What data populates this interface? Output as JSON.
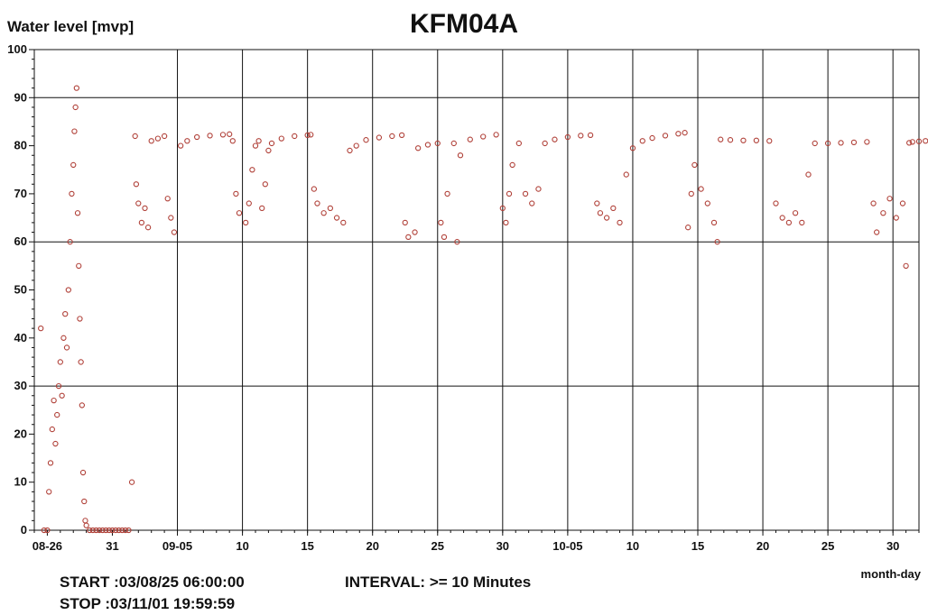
{
  "chart_data": {
    "type": "scatter",
    "title": "KFM04A",
    "ylabel": "Water level [mvp]",
    "xlabel": "month-day",
    "ylim": [
      0,
      100
    ],
    "xlim": [
      "2003-08-25",
      "2003-11-01"
    ],
    "grid": true,
    "marker_color": "#b04038",
    "y_ticks": [
      "0",
      "10",
      "20",
      "30",
      "40",
      "50",
      "60",
      "70",
      "80",
      "90",
      "100"
    ],
    "x_ticks": [
      {
        "date": "2003-08-26",
        "label": "08-26"
      },
      {
        "date": "2003-08-31",
        "label": "31"
      },
      {
        "date": "2003-09-05",
        "label": "09-05"
      },
      {
        "date": "2003-09-10",
        "label": "10"
      },
      {
        "date": "2003-09-15",
        "label": "15"
      },
      {
        "date": "2003-09-20",
        "label": "20"
      },
      {
        "date": "2003-09-25",
        "label": "25"
      },
      {
        "date": "2003-09-30",
        "label": "30"
      },
      {
        "date": "2003-10-05",
        "label": "10-05"
      },
      {
        "date": "2003-10-10",
        "label": "10"
      },
      {
        "date": "2003-10-15",
        "label": "15"
      },
      {
        "date": "2003-10-20",
        "label": "20"
      },
      {
        "date": "2003-10-25",
        "label": "25"
      },
      {
        "date": "2003-10-30",
        "label": "30"
      }
    ],
    "points": [
      [
        "2003-08-25 12:00",
        42
      ],
      [
        "2003-08-25 18:00",
        0
      ],
      [
        "2003-08-26 00:00",
        0
      ],
      [
        "2003-08-26 03:00",
        8
      ],
      [
        "2003-08-26 06:00",
        14
      ],
      [
        "2003-08-26 09:00",
        21
      ],
      [
        "2003-08-26 12:00",
        27
      ],
      [
        "2003-08-26 15:00",
        18
      ],
      [
        "2003-08-26 18:00",
        24
      ],
      [
        "2003-08-26 21:00",
        30
      ],
      [
        "2003-08-27 00:00",
        35
      ],
      [
        "2003-08-27 03:00",
        28
      ],
      [
        "2003-08-27 06:00",
        40
      ],
      [
        "2003-08-27 09:00",
        45
      ],
      [
        "2003-08-27 12:00",
        38
      ],
      [
        "2003-08-27 15:00",
        50
      ],
      [
        "2003-08-27 18:00",
        60
      ],
      [
        "2003-08-27 21:00",
        70
      ],
      [
        "2003-08-28 00:00",
        76
      ],
      [
        "2003-08-28 02:00",
        83
      ],
      [
        "2003-08-28 04:00",
        88
      ],
      [
        "2003-08-28 06:00",
        92
      ],
      [
        "2003-08-28 08:00",
        66
      ],
      [
        "2003-08-28 10:00",
        55
      ],
      [
        "2003-08-28 12:00",
        44
      ],
      [
        "2003-08-28 14:00",
        35
      ],
      [
        "2003-08-28 16:00",
        26
      ],
      [
        "2003-08-28 18:00",
        12
      ],
      [
        "2003-08-28 20:00",
        6
      ],
      [
        "2003-08-28 22:00",
        2
      ],
      [
        "2003-08-29 00:00",
        1
      ],
      [
        "2003-08-29 06:00",
        0
      ],
      [
        "2003-08-29 12:00",
        0
      ],
      [
        "2003-08-29 18:00",
        0
      ],
      [
        "2003-08-30 00:00",
        0
      ],
      [
        "2003-08-30 06:00",
        0
      ],
      [
        "2003-08-30 12:00",
        0
      ],
      [
        "2003-08-30 18:00",
        0
      ],
      [
        "2003-08-31 00:00",
        0
      ],
      [
        "2003-08-31 06:00",
        0
      ],
      [
        "2003-08-31 12:00",
        0
      ],
      [
        "2003-08-31 18:00",
        0
      ],
      [
        "2003-09-01 00:00",
        0
      ],
      [
        "2003-09-01 06:00",
        0
      ],
      [
        "2003-09-01 12:00",
        10
      ],
      [
        "2003-09-01 18:00",
        82
      ],
      [
        "2003-09-01 20:00",
        72
      ],
      [
        "2003-09-02 00:00",
        68
      ],
      [
        "2003-09-02 06:00",
        64
      ],
      [
        "2003-09-02 12:00",
        67
      ],
      [
        "2003-09-02 18:00",
        63
      ],
      [
        "2003-09-03 00:00",
        81
      ],
      [
        "2003-09-03 12:00",
        81.5
      ],
      [
        "2003-09-04 00:00",
        82
      ],
      [
        "2003-09-04 06:00",
        69
      ],
      [
        "2003-09-04 12:00",
        65
      ],
      [
        "2003-09-04 18:00",
        62
      ],
      [
        "2003-09-05 06:00",
        80
      ],
      [
        "2003-09-05 18:00",
        81
      ],
      [
        "2003-09-06 12:00",
        81.8
      ],
      [
        "2003-09-07 12:00",
        82.1
      ],
      [
        "2003-09-08 12:00",
        82.3
      ],
      [
        "2003-09-09 00:00",
        82.4
      ],
      [
        "2003-09-09 06:00",
        81
      ],
      [
        "2003-09-09 12:00",
        70
      ],
      [
        "2003-09-09 18:00",
        66
      ],
      [
        "2003-09-10 06:00",
        64
      ],
      [
        "2003-09-10 12:00",
        68
      ],
      [
        "2003-09-10 18:00",
        75
      ],
      [
        "2003-09-11 00:00",
        80
      ],
      [
        "2003-09-11 06:00",
        81
      ],
      [
        "2003-09-11 12:00",
        67
      ],
      [
        "2003-09-11 18:00",
        72
      ],
      [
        "2003-09-12 00:00",
        79
      ],
      [
        "2003-09-12 06:00",
        80.5
      ],
      [
        "2003-09-13 00:00",
        81.5
      ],
      [
        "2003-09-14 00:00",
        82
      ],
      [
        "2003-09-15 00:00",
        82.2
      ],
      [
        "2003-09-15 06:00",
        82.3
      ],
      [
        "2003-09-15 12:00",
        71
      ],
      [
        "2003-09-15 18:00",
        68
      ],
      [
        "2003-09-16 06:00",
        66
      ],
      [
        "2003-09-16 18:00",
        67
      ],
      [
        "2003-09-17 06:00",
        65
      ],
      [
        "2003-09-17 18:00",
        64
      ],
      [
        "2003-09-18 06:00",
        79
      ],
      [
        "2003-09-18 18:00",
        80
      ],
      [
        "2003-09-19 12:00",
        81.2
      ],
      [
        "2003-09-20 12:00",
        81.7
      ],
      [
        "2003-09-21 12:00",
        82
      ],
      [
        "2003-09-22 06:00",
        82.2
      ],
      [
        "2003-09-22 12:00",
        64
      ],
      [
        "2003-09-22 18:00",
        61
      ],
      [
        "2003-09-23 06:00",
        62
      ],
      [
        "2003-09-23 12:00",
        79.5
      ],
      [
        "2003-09-24 06:00",
        80.2
      ],
      [
        "2003-09-25 00:00",
        80.5
      ],
      [
        "2003-09-25 06:00",
        64
      ],
      [
        "2003-09-25 12:00",
        61
      ],
      [
        "2003-09-25 18:00",
        70
      ],
      [
        "2003-09-26 06:00",
        80.5
      ],
      [
        "2003-09-26 12:00",
        60
      ],
      [
        "2003-09-26 18:00",
        78
      ],
      [
        "2003-09-27 12:00",
        81.3
      ],
      [
        "2003-09-28 12:00",
        81.9
      ],
      [
        "2003-09-29 12:00",
        82.3
      ],
      [
        "2003-09-30 00:00",
        67
      ],
      [
        "2003-09-30 06:00",
        64
      ],
      [
        "2003-09-30 12:00",
        70
      ],
      [
        "2003-09-30 18:00",
        76
      ],
      [
        "2003-10-01 06:00",
        80.5
      ],
      [
        "2003-10-01 18:00",
        70
      ],
      [
        "2003-10-02 06:00",
        68
      ],
      [
        "2003-10-02 18:00",
        71
      ],
      [
        "2003-10-03 06:00",
        80.5
      ],
      [
        "2003-10-04 00:00",
        81.3
      ],
      [
        "2003-10-05 00:00",
        81.8
      ],
      [
        "2003-10-06 00:00",
        82.1
      ],
      [
        "2003-10-06 18:00",
        82.2
      ],
      [
        "2003-10-07 06:00",
        68
      ],
      [
        "2003-10-07 12:00",
        66
      ],
      [
        "2003-10-08 00:00",
        65
      ],
      [
        "2003-10-08 12:00",
        67
      ],
      [
        "2003-10-09 00:00",
        64
      ],
      [
        "2003-10-09 12:00",
        74
      ],
      [
        "2003-10-10 00:00",
        79.5
      ],
      [
        "2003-10-10 18:00",
        81
      ],
      [
        "2003-10-11 12:00",
        81.6
      ],
      [
        "2003-10-12 12:00",
        82.1
      ],
      [
        "2003-10-13 12:00",
        82.5
      ],
      [
        "2003-10-14 00:00",
        82.7
      ],
      [
        "2003-10-14 06:00",
        63
      ],
      [
        "2003-10-14 12:00",
        70
      ],
      [
        "2003-10-14 18:00",
        76
      ],
      [
        "2003-10-15 06:00",
        71
      ],
      [
        "2003-10-15 18:00",
        68
      ],
      [
        "2003-10-16 06:00",
        64
      ],
      [
        "2003-10-16 12:00",
        60
      ],
      [
        "2003-10-16 18:00",
        81.3
      ],
      [
        "2003-10-17 12:00",
        81.2
      ],
      [
        "2003-10-18 12:00",
        81.1
      ],
      [
        "2003-10-19 12:00",
        81.1
      ],
      [
        "2003-10-20 12:00",
        81
      ],
      [
        "2003-10-21 00:00",
        68
      ],
      [
        "2003-10-21 12:00",
        65
      ],
      [
        "2003-10-22 00:00",
        64
      ],
      [
        "2003-10-22 12:00",
        66
      ],
      [
        "2003-10-23 00:00",
        64
      ],
      [
        "2003-10-23 12:00",
        74
      ],
      [
        "2003-10-24 00:00",
        80.5
      ],
      [
        "2003-10-25 00:00",
        80.5
      ],
      [
        "2003-10-26 00:00",
        80.6
      ],
      [
        "2003-10-27 00:00",
        80.7
      ],
      [
        "2003-10-28 00:00",
        80.8
      ],
      [
        "2003-10-28 12:00",
        68
      ],
      [
        "2003-10-28 18:00",
        62
      ],
      [
        "2003-10-29 06:00",
        66
      ],
      [
        "2003-10-29 18:00",
        69
      ],
      [
        "2003-10-30 06:00",
        65
      ],
      [
        "2003-10-30 18:00",
        68
      ],
      [
        "2003-10-31 00:00",
        55
      ],
      [
        "2003-10-31 06:00",
        80.6
      ],
      [
        "2003-10-31 12:00",
        80.8
      ],
      [
        "2003-11-01 00:00",
        80.9
      ],
      [
        "2003-11-01 12:00",
        81
      ]
    ]
  },
  "footer": {
    "start": "START :03/08/25 06:00:00",
    "stop": "STOP :03/11/01 19:59:59",
    "interval": "INTERVAL: >= 10 Minutes"
  }
}
